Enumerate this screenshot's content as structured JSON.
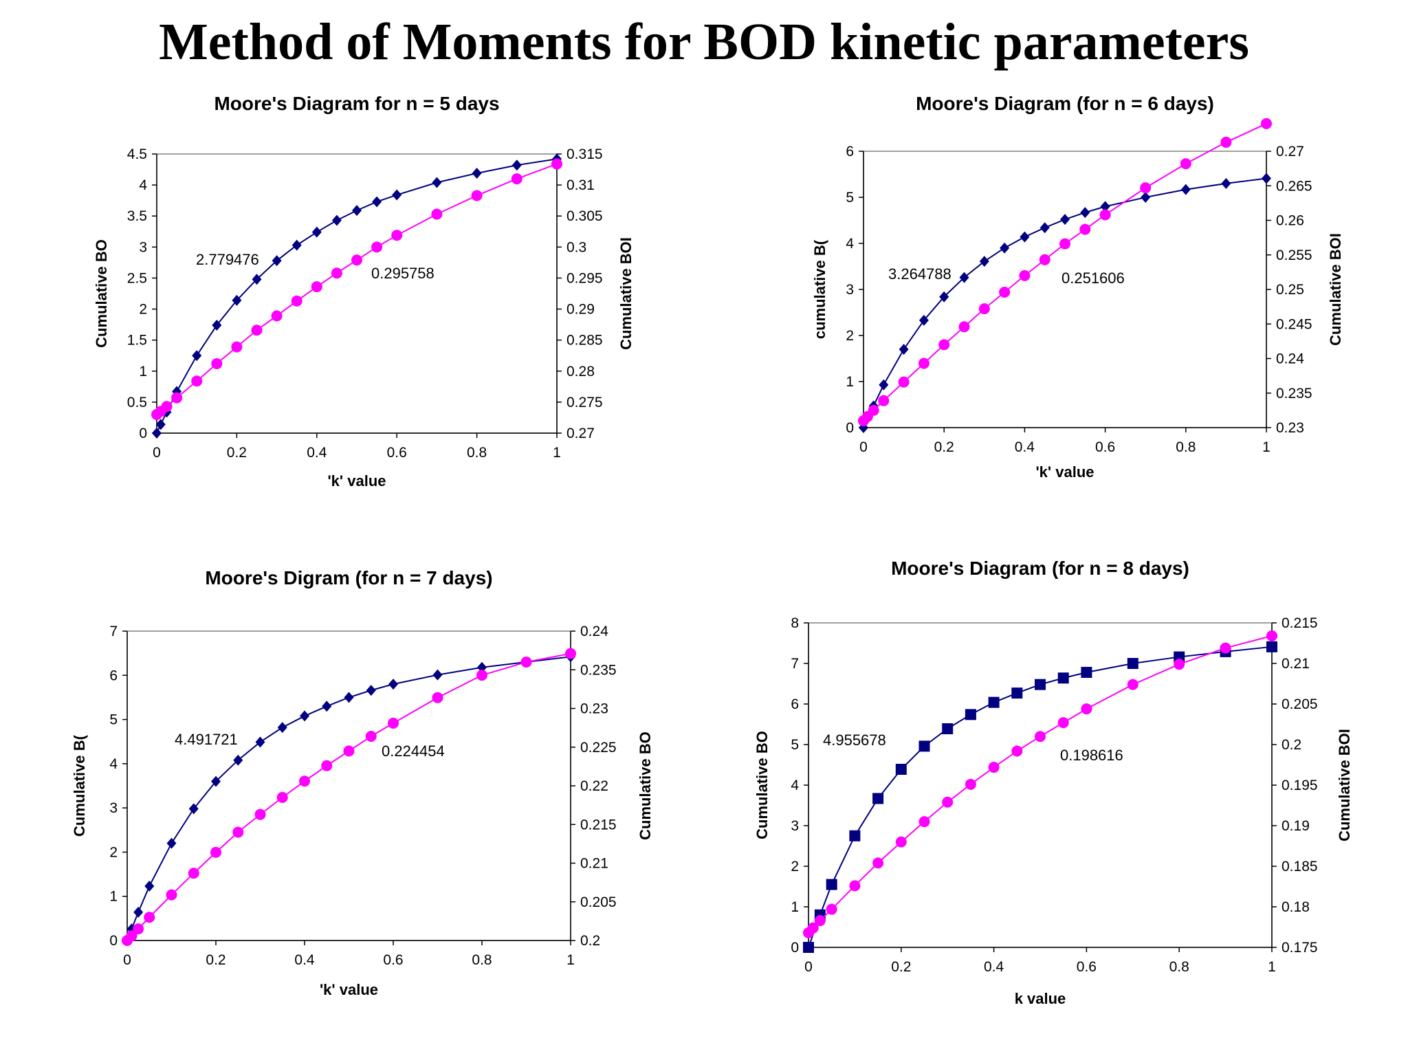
{
  "page": {
    "title": "Method of Moments for BOD kinetic parameters"
  },
  "colors": {
    "series1": "#000080",
    "series2": "#ff00ff",
    "frame": "#808080",
    "grid": "#c0c0c0"
  },
  "chart_data": [
    {
      "type": "line",
      "title": "Moore's Diagram for n = 5 days",
      "xlabel": "'k' value",
      "ylabel": "Cumulative BO",
      "y2label": "Cumulative BOI",
      "xlim": [
        0,
        1
      ],
      "ylim": [
        0,
        4.5
      ],
      "y2lim": [
        0.27,
        0.315
      ],
      "xticks": [
        "0",
        "0.2",
        "0.4",
        "0.6",
        "0.8",
        "1"
      ],
      "yticks": [
        "0",
        "0.5",
        "1",
        "1.5",
        "2",
        "2.5",
        "3",
        "3.5",
        "4",
        "4.5"
      ],
      "y2ticks": [
        "0.27",
        "0.275",
        "0.28",
        "0.285",
        "0.29",
        "0.295",
        "0.3",
        "0.305",
        "0.31",
        "0.315"
      ],
      "annotations": {
        "left": "2.779476",
        "right": "0.295758"
      },
      "series": [
        {
          "axis": "left",
          "marker": "diamond",
          "x": [
            0,
            0.01,
            0.025,
            0.05,
            0.1,
            0.15,
            0.2,
            0.25,
            0.3,
            0.35,
            0.4,
            0.45,
            0.5,
            0.55,
            0.6,
            0.7,
            0.8,
            0.9,
            1.0
          ],
          "y": [
            0,
            0.14,
            0.34,
            0.67,
            1.25,
            1.74,
            2.14,
            2.48,
            2.78,
            3.03,
            3.24,
            3.43,
            3.59,
            3.73,
            3.84,
            4.04,
            4.19,
            4.32,
            4.42
          ]
        },
        {
          "axis": "right",
          "marker": "circle",
          "x": [
            0,
            0.01,
            0.025,
            0.05,
            0.1,
            0.15,
            0.2,
            0.25,
            0.3,
            0.35,
            0.4,
            0.45,
            0.5,
            0.55,
            0.6,
            0.7,
            0.8,
            0.9,
            1.0
          ],
          "y": [
            0.273,
            0.2735,
            0.2743,
            0.2757,
            0.2784,
            0.2812,
            0.2839,
            0.2866,
            0.2889,
            0.2913,
            0.2936,
            0.2958,
            0.2979,
            0.3,
            0.3019,
            0.3053,
            0.3083,
            0.311,
            0.3134
          ]
        }
      ]
    },
    {
      "type": "line",
      "title": "Moore's Diagram (for n = 6 days)",
      "xlabel": "'k' value",
      "ylabel": "cumulative B(",
      "y2label": "Cumulative BOI",
      "xlim": [
        0,
        1
      ],
      "ylim": [
        0,
        6
      ],
      "y2lim": [
        0.23,
        0.27
      ],
      "xticks": [
        "0",
        "0.2",
        "0.4",
        "0.6",
        "0.8",
        "1"
      ],
      "yticks": [
        "0",
        "1",
        "2",
        "3",
        "4",
        "5",
        "6"
      ],
      "y2ticks": [
        "0.23",
        "0.235",
        "0.24",
        "0.245",
        "0.25",
        "0.255",
        "0.26",
        "0.265",
        "0.27"
      ],
      "annotations": {
        "left": "3.264788",
        "right": "0.251606"
      },
      "series": [
        {
          "axis": "left",
          "marker": "diamond",
          "x": [
            0,
            0.01,
            0.025,
            0.05,
            0.1,
            0.15,
            0.2,
            0.25,
            0.3,
            0.35,
            0.4,
            0.45,
            0.5,
            0.55,
            0.6,
            0.7,
            0.8,
            0.9,
            1.0
          ],
          "y": [
            0,
            0.2,
            0.47,
            0.93,
            1.7,
            2.33,
            2.84,
            3.26,
            3.61,
            3.9,
            4.14,
            4.34,
            4.52,
            4.67,
            4.8,
            5.0,
            5.17,
            5.3,
            5.41
          ]
        },
        {
          "axis": "right",
          "marker": "circle",
          "x": [
            0,
            0.01,
            0.025,
            0.05,
            0.1,
            0.15,
            0.2,
            0.25,
            0.3,
            0.35,
            0.4,
            0.45,
            0.5,
            0.55,
            0.6,
            0.7,
            0.8,
            0.9,
            1.0
          ],
          "y": [
            0.231,
            0.2316,
            0.2325,
            0.2339,
            0.2366,
            0.2393,
            0.242,
            0.2446,
            0.2472,
            0.2496,
            0.252,
            0.2543,
            0.2566,
            0.2587,
            0.2608,
            0.2647,
            0.2682,
            0.2713,
            0.274
          ]
        }
      ]
    },
    {
      "type": "line",
      "title": "Moore's Digram (for n = 7 days)",
      "xlabel": "'k' value",
      "ylabel": "Cumulative B(",
      "y2label": "Cumulative BO",
      "xlim": [
        0,
        1
      ],
      "ylim": [
        0,
        7
      ],
      "y2lim": [
        0.2,
        0.24
      ],
      "xticks": [
        "0",
        "0.2",
        "0.4",
        "0.6",
        "0.8",
        "1"
      ],
      "yticks": [
        "0",
        "1",
        "2",
        "3",
        "4",
        "5",
        "6",
        "7"
      ],
      "y2ticks": [
        "0.2",
        "0.205",
        "0.21",
        "0.215",
        "0.22",
        "0.225",
        "0.23",
        "0.235",
        "0.24"
      ],
      "annotations": {
        "left": "4.491721",
        "right": "0.224454"
      },
      "series": [
        {
          "axis": "left",
          "marker": "diamond",
          "x": [
            0,
            0.01,
            0.025,
            0.05,
            0.1,
            0.15,
            0.2,
            0.25,
            0.3,
            0.35,
            0.4,
            0.45,
            0.5,
            0.55,
            0.6,
            0.7,
            0.8,
            0.9,
            1.0
          ],
          "y": [
            0,
            0.26,
            0.64,
            1.23,
            2.2,
            2.98,
            3.6,
            4.08,
            4.49,
            4.82,
            5.08,
            5.3,
            5.5,
            5.66,
            5.8,
            6.01,
            6.18,
            6.3,
            6.42
          ]
        },
        {
          "axis": "right",
          "marker": "circle",
          "x": [
            0,
            0.01,
            0.025,
            0.05,
            0.1,
            0.15,
            0.2,
            0.25,
            0.3,
            0.35,
            0.4,
            0.45,
            0.5,
            0.55,
            0.6,
            0.7,
            0.8,
            0.9,
            1.0
          ],
          "y": [
            0.2,
            0.2006,
            0.2015,
            0.203,
            0.2059,
            0.2087,
            0.2114,
            0.214,
            0.2163,
            0.2185,
            0.2206,
            0.2226,
            0.2245,
            0.2264,
            0.2281,
            0.2314,
            0.2343,
            0.236,
            0.2371
          ]
        }
      ]
    },
    {
      "type": "line",
      "title": "Moore's Diagram (for n = 8 days)",
      "xlabel": "k value",
      "ylabel": "Cumulative BO",
      "y2label": "Cumulative BOI",
      "xlim": [
        0,
        1
      ],
      "ylim": [
        0,
        8
      ],
      "y2lim": [
        0.175,
        0.215
      ],
      "xticks": [
        "0",
        "0.2",
        "0.4",
        "0.6",
        "0.8",
        "1"
      ],
      "yticks": [
        "0",
        "1",
        "2",
        "3",
        "4",
        "5",
        "6",
        "7",
        "8"
      ],
      "y2ticks": [
        "0.175",
        "0.18",
        "0.185",
        "0.19",
        "0.195",
        "0.2",
        "0.205",
        "0.21",
        "0.215"
      ],
      "annotations": {
        "left": "4.955678",
        "right": "0.198616"
      },
      "series": [
        {
          "axis": "left",
          "marker": "square",
          "x": [
            0,
            0.025,
            0.05,
            0.1,
            0.15,
            0.2,
            0.25,
            0.3,
            0.35,
            0.4,
            0.45,
            0.5,
            0.55,
            0.6,
            0.7,
            0.8,
            0.9,
            1.0
          ],
          "y": [
            0,
            0.8,
            1.55,
            2.75,
            3.67,
            4.39,
            4.96,
            5.39,
            5.74,
            6.04,
            6.27,
            6.48,
            6.64,
            6.78,
            7.0,
            7.16,
            7.29,
            7.41
          ]
        },
        {
          "axis": "right",
          "marker": "circle",
          "x": [
            0,
            0.01,
            0.025,
            0.05,
            0.1,
            0.15,
            0.2,
            0.25,
            0.3,
            0.35,
            0.4,
            0.45,
            0.5,
            0.55,
            0.6,
            0.7,
            0.8,
            0.9,
            1.0
          ],
          "y": [
            0.1768,
            0.1774,
            0.1783,
            0.1797,
            0.1826,
            0.1854,
            0.188,
            0.1905,
            0.1929,
            0.1951,
            0.1972,
            0.1992,
            0.201,
            0.2027,
            0.2044,
            0.2074,
            0.2099,
            0.2119,
            0.2134
          ]
        }
      ]
    }
  ]
}
